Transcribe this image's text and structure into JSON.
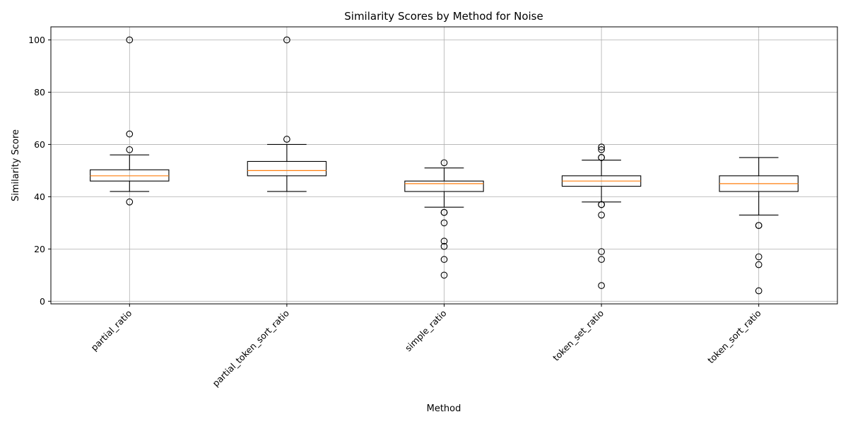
{
  "chart_data": {
    "type": "box",
    "title": "Similarity Scores by Method for Noise",
    "xlabel": "Method",
    "ylabel": "Similarity Score",
    "ylim": [
      -1,
      105
    ],
    "yticks": [
      0,
      20,
      40,
      60,
      80,
      100
    ],
    "grid": true,
    "colors": {
      "box": "#000000",
      "median": "#ff7f0e",
      "grid": "#b0b0b0",
      "flier": "#000000"
    },
    "categories": [
      "partial_ratio",
      "partial_token_sort_ratio",
      "simple_ratio",
      "token_set_ratio",
      "token_sort_ratio"
    ],
    "boxes": [
      {
        "category": "partial_ratio",
        "whisker_low": 42,
        "q1": 46,
        "median": 48,
        "q3": 50.3,
        "whisker_high": 56,
        "fliers": [
          100,
          64,
          58,
          38
        ]
      },
      {
        "category": "partial_token_sort_ratio",
        "whisker_low": 42,
        "q1": 48,
        "median": 50,
        "q3": 53.5,
        "whisker_high": 60,
        "fliers": [
          100,
          62
        ]
      },
      {
        "category": "simple_ratio",
        "whisker_low": 36,
        "q1": 42,
        "median": 45,
        "q3": 46,
        "whisker_high": 51,
        "fliers": [
          53,
          34,
          34,
          30,
          23,
          21,
          16,
          10
        ]
      },
      {
        "category": "token_set_ratio",
        "whisker_low": 38,
        "q1": 44,
        "median": 46,
        "q3": 48,
        "whisker_high": 54,
        "fliers": [
          59,
          58,
          55,
          55,
          37,
          37,
          33,
          19,
          16,
          6
        ]
      },
      {
        "category": "token_sort_ratio",
        "whisker_low": 33,
        "q1": 42,
        "median": 45,
        "q3": 48,
        "whisker_high": 55,
        "fliers": [
          29,
          29,
          17,
          14,
          4
        ]
      }
    ]
  }
}
